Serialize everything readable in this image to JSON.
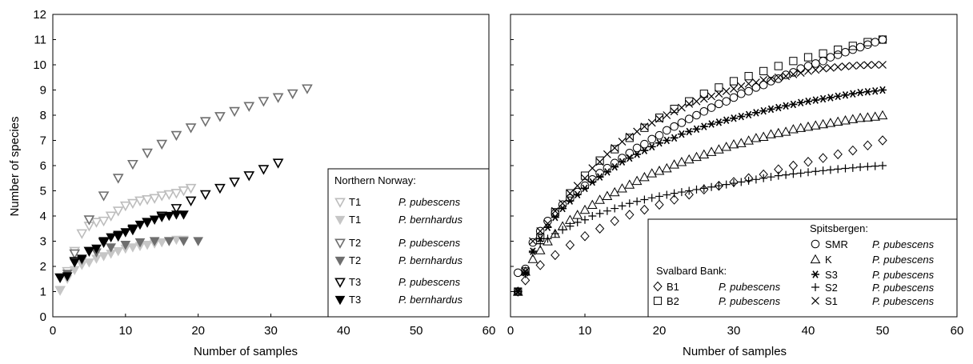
{
  "chart_data": [
    {
      "type": "scatter",
      "title": "",
      "xlabel": "Number of samples",
      "ylabel": "Number of species",
      "xlim": [
        0,
        60
      ],
      "ylim": [
        0,
        12
      ],
      "xticks": [
        "0",
        "10",
        "20",
        "30",
        "40",
        "50",
        "60"
      ],
      "yticks": [
        "0",
        "1",
        "2",
        "3",
        "4",
        "5",
        "6",
        "7",
        "8",
        "9",
        "10",
        "11",
        "12"
      ],
      "legend": {
        "title": "Northern Norway:",
        "placement": "bottom-right",
        "entries": [
          {
            "code": "T1",
            "species": "P. pubescens",
            "series": 0
          },
          {
            "code": "T1",
            "species": "P. bernhardus",
            "series": 1
          },
          {
            "code": "T2",
            "species": "P. pubescens",
            "series": 2
          },
          {
            "code": "T2",
            "species": "P. bernhardus",
            "series": 3
          },
          {
            "code": "T3",
            "species": "P. pubescens",
            "series": 4
          },
          {
            "code": "T3",
            "species": "P. bernhardus",
            "series": 5
          }
        ]
      },
      "series": [
        {
          "marker": "tri-down-open",
          "color": "#bdbdbd",
          "x": [
            1,
            2,
            3,
            4,
            5,
            6,
            7,
            8,
            9,
            10,
            11,
            12,
            13,
            14,
            15,
            16,
            17,
            18,
            19
          ],
          "y": [
            1.05,
            1.8,
            2.6,
            3.3,
            3.6,
            3.75,
            3.8,
            4.0,
            4.2,
            4.4,
            4.5,
            4.6,
            4.65,
            4.7,
            4.8,
            4.85,
            4.9,
            5.0,
            5.1
          ]
        },
        {
          "marker": "tri-down-filled",
          "color": "#c6c6c6",
          "x": [
            1,
            2,
            3,
            4,
            5,
            6,
            7,
            8,
            9,
            10,
            11,
            12,
            13,
            14,
            15,
            16,
            17,
            18
          ],
          "y": [
            1.05,
            1.5,
            1.85,
            2.05,
            2.15,
            2.3,
            2.4,
            2.5,
            2.6,
            2.7,
            2.75,
            2.8,
            2.85,
            2.9,
            2.95,
            3.0,
            3.05,
            3.05
          ]
        },
        {
          "marker": "tri-down-open",
          "color": "#6e6e6e",
          "x": [
            3,
            5,
            7,
            9,
            11,
            13,
            15,
            17,
            19,
            21,
            23,
            25,
            27,
            29,
            31,
            33,
            35
          ],
          "y": [
            2.5,
            3.85,
            4.8,
            5.5,
            6.05,
            6.5,
            6.85,
            7.2,
            7.5,
            7.75,
            7.95,
            8.15,
            8.35,
            8.55,
            8.7,
            8.85,
            9.05
          ]
        },
        {
          "marker": "tri-down-filled",
          "color": "#6e6e6e",
          "x": [
            2,
            4,
            6,
            8,
            10,
            12,
            14,
            16,
            18,
            20
          ],
          "y": [
            1.7,
            2.25,
            2.55,
            2.75,
            2.85,
            2.95,
            3.0,
            3.0,
            3.0,
            3.0
          ]
        },
        {
          "marker": "tri-down-open",
          "color": "#000000",
          "x": [
            1,
            3,
            5,
            7,
            9,
            11,
            13,
            15,
            17,
            19,
            21,
            23,
            25,
            27,
            29,
            31
          ],
          "y": [
            1.55,
            2.2,
            2.6,
            2.95,
            3.2,
            3.45,
            3.75,
            4.0,
            4.3,
            4.6,
            4.85,
            5.1,
            5.35,
            5.6,
            5.85,
            6.1
          ]
        },
        {
          "marker": "tri-down-filled",
          "color": "#000000",
          "x": [
            1,
            2,
            3,
            4,
            5,
            6,
            7,
            8,
            9,
            10,
            11,
            12,
            13,
            14,
            15,
            16,
            17,
            18
          ],
          "y": [
            1.55,
            1.6,
            2.15,
            2.3,
            2.6,
            2.7,
            3.0,
            3.15,
            3.25,
            3.35,
            3.5,
            3.65,
            3.75,
            3.85,
            3.95,
            4.0,
            4.05,
            4.05
          ]
        }
      ]
    },
    {
      "type": "scatter",
      "title": "",
      "xlabel": "Number of samples",
      "ylabel": "",
      "xlim": [
        0,
        60
      ],
      "ylim": [
        0,
        12
      ],
      "xticks": [
        "0",
        "10",
        "20",
        "30",
        "40",
        "50",
        "60"
      ],
      "legend": {
        "placement": "bottom-right",
        "group1_title": "Spitsbergen:",
        "group1": [
          {
            "code": "SMR",
            "species": "P. pubescens",
            "series": 0
          },
          {
            "code": "K",
            "species": "P. pubescens",
            "series": 1
          },
          {
            "code": "S3",
            "species": "P. pubescens",
            "series": 2
          },
          {
            "code": "S2",
            "species": "P. pubescens",
            "series": 3
          },
          {
            "code": "S1",
            "species": "P. pubescens",
            "series": 4
          }
        ],
        "group2_title": "Svalbard Bank:",
        "group2": [
          {
            "code": "B1",
            "species": "P. pubescens",
            "series": 5
          },
          {
            "code": "B2",
            "species": "P. pubescens",
            "series": 6
          }
        ]
      },
      "series": [
        {
          "marker": "circle",
          "color": "#000000",
          "x": [
            1,
            2,
            3,
            4,
            5,
            6,
            7,
            8,
            9,
            10,
            11,
            12,
            13,
            14,
            15,
            16,
            17,
            18,
            19,
            20,
            21,
            22,
            23,
            24,
            25,
            26,
            27,
            28,
            29,
            30,
            31,
            32,
            33,
            34,
            35,
            36,
            37,
            38,
            39,
            40,
            41,
            42,
            43,
            44,
            45,
            46,
            47,
            48,
            49,
            50
          ],
          "y": [
            1.75,
            1.9,
            2.95,
            3.4,
            3.8,
            4.1,
            4.45,
            4.7,
            4.95,
            5.2,
            5.45,
            5.7,
            5.9,
            6.1,
            6.3,
            6.5,
            6.7,
            6.85,
            7.05,
            7.2,
            7.4,
            7.55,
            7.7,
            7.85,
            8.0,
            8.15,
            8.3,
            8.45,
            8.55,
            8.7,
            8.85,
            8.95,
            9.1,
            9.2,
            9.35,
            9.45,
            9.6,
            9.7,
            9.85,
            9.95,
            10.05,
            10.15,
            10.3,
            10.4,
            10.5,
            10.6,
            10.7,
            10.8,
            10.9,
            11.0
          ]
        },
        {
          "marker": "triangle",
          "color": "#000000",
          "x": [
            1,
            2,
            3,
            4,
            5,
            6,
            7,
            8,
            9,
            10,
            11,
            12,
            13,
            14,
            15,
            16,
            17,
            18,
            19,
            20,
            21,
            22,
            23,
            24,
            25,
            26,
            27,
            28,
            29,
            30,
            31,
            32,
            33,
            34,
            35,
            36,
            37,
            38,
            39,
            40,
            41,
            42,
            43,
            44,
            45,
            46,
            47,
            48,
            49,
            50
          ],
          "y": [
            1.0,
            1.8,
            2.3,
            2.65,
            3.0,
            3.3,
            3.6,
            3.85,
            4.05,
            4.25,
            4.45,
            4.65,
            4.8,
            4.95,
            5.1,
            5.25,
            5.4,
            5.55,
            5.7,
            5.8,
            5.9,
            6.05,
            6.15,
            6.25,
            6.35,
            6.45,
            6.55,
            6.65,
            6.75,
            6.85,
            6.9,
            7.0,
            7.1,
            7.15,
            7.25,
            7.3,
            7.35,
            7.45,
            7.5,
            7.55,
            7.6,
            7.65,
            7.7,
            7.75,
            7.8,
            7.85,
            7.9,
            7.92,
            7.95,
            8.0
          ]
        },
        {
          "marker": "asterisk",
          "color": "#000000",
          "x": [
            1,
            2,
            3,
            4,
            5,
            6,
            7,
            8,
            9,
            10,
            11,
            12,
            13,
            14,
            15,
            16,
            17,
            18,
            19,
            20,
            21,
            22,
            23,
            24,
            25,
            26,
            27,
            28,
            29,
            30,
            31,
            32,
            33,
            34,
            35,
            36,
            37,
            38,
            39,
            40,
            41,
            42,
            43,
            44,
            45,
            46,
            47,
            48,
            49,
            50
          ],
          "y": [
            1.0,
            1.75,
            2.6,
            3.1,
            3.55,
            3.95,
            4.3,
            4.6,
            4.85,
            5.1,
            5.35,
            5.55,
            5.75,
            5.95,
            6.15,
            6.3,
            6.45,
            6.6,
            6.75,
            6.9,
            7.0,
            7.1,
            7.25,
            7.35,
            7.45,
            7.55,
            7.65,
            7.72,
            7.8,
            7.88,
            7.95,
            8.02,
            8.1,
            8.17,
            8.24,
            8.3,
            8.37,
            8.43,
            8.5,
            8.55,
            8.6,
            8.65,
            8.7,
            8.75,
            8.8,
            8.85,
            8.9,
            8.93,
            8.96,
            9.0
          ]
        },
        {
          "marker": "plus",
          "color": "#000000",
          "x": [
            1,
            2,
            3,
            4,
            5,
            6,
            7,
            8,
            9,
            10,
            11,
            12,
            13,
            14,
            15,
            16,
            17,
            18,
            19,
            20,
            21,
            22,
            23,
            24,
            25,
            26,
            27,
            28,
            29,
            30,
            31,
            32,
            33,
            34,
            35,
            36,
            37,
            38,
            39,
            40,
            41,
            42,
            43,
            44,
            45,
            46,
            47,
            48,
            49,
            50
          ],
          "y": [
            1.0,
            1.7,
            2.55,
            2.9,
            3.1,
            3.3,
            3.45,
            3.6,
            3.75,
            3.85,
            4.0,
            4.1,
            4.2,
            4.3,
            4.4,
            4.5,
            4.58,
            4.65,
            4.72,
            4.78,
            4.84,
            4.9,
            4.95,
            5.0,
            5.05,
            5.1,
            5.15,
            5.2,
            5.25,
            5.3,
            5.35,
            5.4,
            5.45,
            5.5,
            5.55,
            5.6,
            5.63,
            5.67,
            5.7,
            5.74,
            5.77,
            5.8,
            5.83,
            5.86,
            5.89,
            5.91,
            5.94,
            5.96,
            5.98,
            6.0
          ]
        },
        {
          "marker": "x",
          "color": "#000000",
          "x": [
            1,
            2,
            3,
            4,
            5,
            6,
            7,
            8,
            9,
            10,
            11,
            12,
            13,
            14,
            15,
            16,
            17,
            18,
            19,
            20,
            21,
            22,
            23,
            24,
            25,
            26,
            27,
            28,
            29,
            30,
            31,
            32,
            33,
            34,
            35,
            36,
            37,
            38,
            39,
            40,
            41,
            42,
            43,
            44,
            45,
            46,
            47,
            48,
            49,
            50
          ],
          "y": [
            1.0,
            1.8,
            3.0,
            3.4,
            3.7,
            4.2,
            4.5,
            4.9,
            5.2,
            5.5,
            5.9,
            6.15,
            6.45,
            6.7,
            6.95,
            7.15,
            7.35,
            7.55,
            7.7,
            7.85,
            8.0,
            8.15,
            8.3,
            8.45,
            8.55,
            8.65,
            8.75,
            8.85,
            8.95,
            9.05,
            9.15,
            9.25,
            9.3,
            9.4,
            9.45,
            9.5,
            9.55,
            9.62,
            9.68,
            9.75,
            9.8,
            9.85,
            9.88,
            9.91,
            9.94,
            9.96,
            9.98,
            9.99,
            10.0,
            10.0
          ]
        },
        {
          "marker": "diamond",
          "color": "#000000",
          "x": [
            1,
            2,
            4,
            6,
            8,
            10,
            12,
            14,
            16,
            18,
            20,
            22,
            24,
            26,
            28,
            30,
            32,
            34,
            36,
            38,
            40,
            42,
            44,
            46,
            48,
            50
          ],
          "y": [
            1.0,
            1.45,
            2.05,
            2.45,
            2.85,
            3.2,
            3.5,
            3.8,
            4.05,
            4.25,
            4.45,
            4.65,
            4.85,
            5.05,
            5.2,
            5.35,
            5.5,
            5.65,
            5.85,
            6.0,
            6.15,
            6.3,
            6.45,
            6.6,
            6.8,
            7.0
          ]
        },
        {
          "marker": "square",
          "color": "#000000",
          "x": [
            1,
            2,
            4,
            6,
            8,
            10,
            12,
            14,
            16,
            18,
            20,
            22,
            24,
            26,
            28,
            30,
            32,
            34,
            36,
            38,
            40,
            42,
            44,
            46,
            48,
            50
          ],
          "y": [
            1.0,
            1.8,
            3.15,
            4.15,
            4.9,
            5.6,
            6.2,
            6.65,
            7.1,
            7.5,
            7.9,
            8.25,
            8.55,
            8.85,
            9.1,
            9.35,
            9.55,
            9.75,
            9.95,
            10.15,
            10.3,
            10.45,
            10.6,
            10.75,
            10.9,
            11.0
          ]
        }
      ]
    }
  ]
}
